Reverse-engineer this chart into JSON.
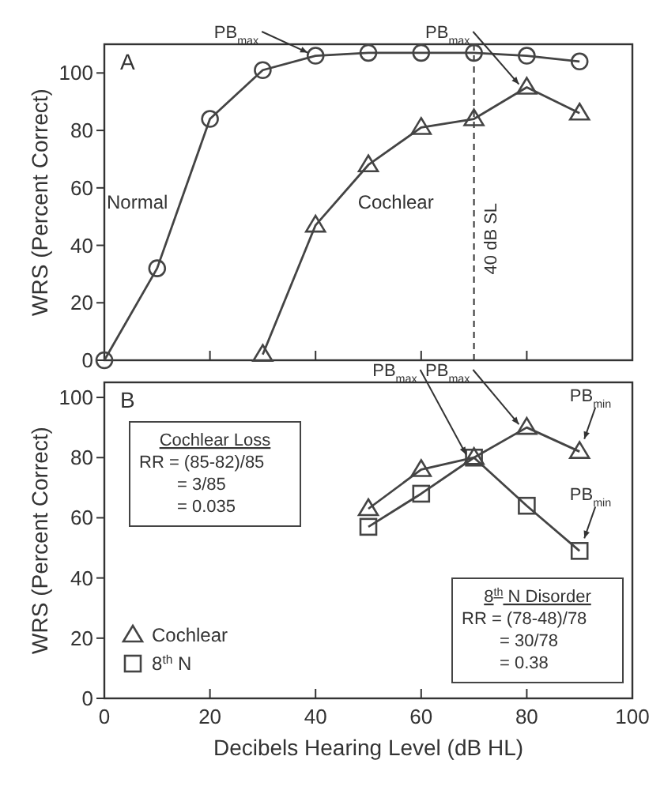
{
  "chart_data": [
    {
      "type": "line",
      "title": "A",
      "ylabel": "WRS (Percent Correct)",
      "xlim": [
        0,
        100
      ],
      "xticks": [
        {
          "value": 0,
          "label": null
        },
        {
          "value": 20,
          "label": null
        },
        {
          "value": 40,
          "label": null
        },
        {
          "value": 60,
          "label": null
        },
        {
          "value": 80,
          "label": null
        },
        {
          "value": 100,
          "label": null
        }
      ],
      "ylim": [
        0,
        110
      ],
      "yticks": [
        0,
        20,
        40,
        60,
        80,
        100
      ],
      "tick_labels": "y",
      "line_style": "solid",
      "grid": false,
      "legend": false,
      "series": [
        {
          "name": "Normal",
          "color": "#444444",
          "marker": "circle",
          "x": [
            0,
            10,
            20,
            30,
            40,
            50,
            60,
            70,
            80,
            90
          ],
          "values": [
            0,
            32,
            84,
            101,
            106,
            107,
            107,
            107,
            106,
            104
          ]
        },
        {
          "name": "Cochlear",
          "color": "#444444",
          "marker": "triangle",
          "x": [
            30,
            40,
            50,
            60,
            70,
            80,
            90
          ],
          "values": [
            2,
            47,
            68,
            81,
            84,
            95,
            86
          ]
        }
      ],
      "ref_lines": [
        {
          "axis": "x",
          "value": 70,
          "label": "40 dB SL",
          "line_style": "dashed",
          "color": "#333333"
        }
      ],
      "annotations": [
        {
          "text": "PB$_{max}$",
          "x": 40,
          "y": 106
        },
        {
          "text": "PB$_{max}$",
          "x": 80,
          "y": 95
        }
      ]
    },
    {
      "type": "line",
      "title": "B",
      "xlabel": "Decibels Hearing Level (dB HL)",
      "ylabel": "WRS (Percent Correct)",
      "xlim": [
        0,
        100
      ],
      "xticks": [
        0,
        20,
        40,
        60,
        80,
        100
      ],
      "ylim": [
        0,
        105
      ],
      "yticks": [
        0,
        20,
        40,
        60,
        80,
        100
      ],
      "line_style": "solid",
      "grid": false,
      "legend": "bottom left",
      "series": [
        {
          "name": "Cochlear",
          "color": "#444444",
          "marker": "triangle",
          "x": [
            50,
            60,
            70,
            80,
            90
          ],
          "values": [
            63,
            76,
            80,
            90,
            82
          ]
        },
        {
          "name": "8$^{th}$ N",
          "color": "#444444",
          "marker": "square",
          "x": [
            50,
            60,
            70,
            80,
            90
          ],
          "values": [
            57,
            68,
            80,
            64,
            49
          ]
        }
      ],
      "annotations": [
        {
          "text": "PB$_{max}$",
          "x": 80,
          "y": 90
        },
        {
          "text": "PB$_{max}$",
          "x": 70,
          "y": 80
        },
        {
          "text": "PB$_{min}$",
          "x": 90,
          "y": 82
        },
        {
          "text": "PB$_{min}$",
          "x": 90,
          "y": 49
        },
        "Cochlear Loss\nRR = (85-82)/85\n= 3/85\n= 0.035",
        "8$^{th}$ N Disorder\nRR = (78-48)/78\n= 30/78\n= 0.38"
      ]
    }
  ]
}
